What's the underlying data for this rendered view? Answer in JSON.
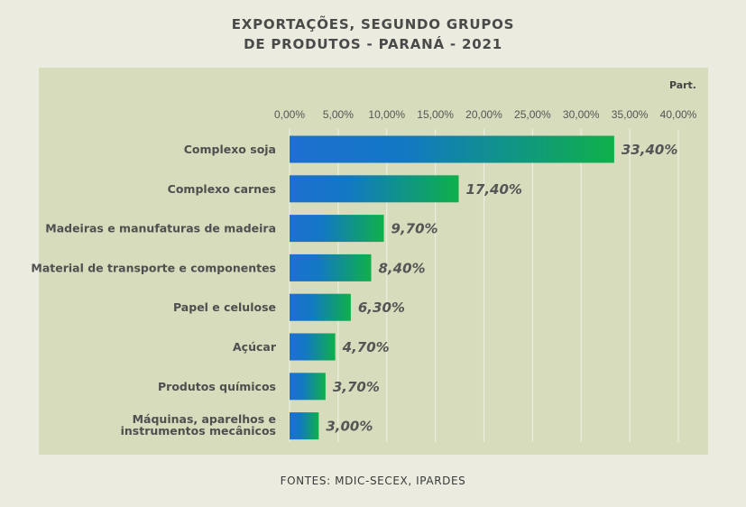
{
  "header": {
    "title_line1": "EXPORTAÇÕES, SEGUNDO GRUPOS",
    "title_line2": "DE PRODUTOS - PARANÁ - 2021"
  },
  "footer": {
    "source": "FONTES: MDIC-SECEX, IPARDES"
  },
  "colors": {
    "bar_start": "#1e6fd0",
    "bar_end": "#0fb04a",
    "panel_bg": "#d6dcbc",
    "page_bg": "#ebebdf"
  },
  "chart_data": {
    "type": "bar",
    "orientation": "horizontal",
    "unit_label": "Part.",
    "xlim": [
      0,
      40
    ],
    "x_tick_labels": [
      "0,00%",
      "5,00%",
      "10,00%",
      "15,00%",
      "20,00%",
      "25,00%",
      "30,00%",
      "35,00%",
      "40,00%"
    ],
    "grid": true,
    "categories": [
      [
        "Complexo soja"
      ],
      [
        "Complexo carnes"
      ],
      [
        "Madeiras e manufaturas de madeira"
      ],
      [
        "Material de transporte e componentes"
      ],
      [
        "Papel e celulose"
      ],
      [
        "Açúcar"
      ],
      [
        "Produtos químicos"
      ],
      [
        "Máquinas, aparelhos e",
        "instrumentos mecânicos"
      ]
    ],
    "values": [
      33.4,
      17.4,
      9.7,
      8.4,
      6.3,
      4.7,
      3.7,
      3.0
    ],
    "value_labels": [
      "33,40%",
      "17,40%",
      "9,70%",
      "8,40%",
      "6,30%",
      "4,70%",
      "3,70%",
      "3,00%"
    ]
  }
}
